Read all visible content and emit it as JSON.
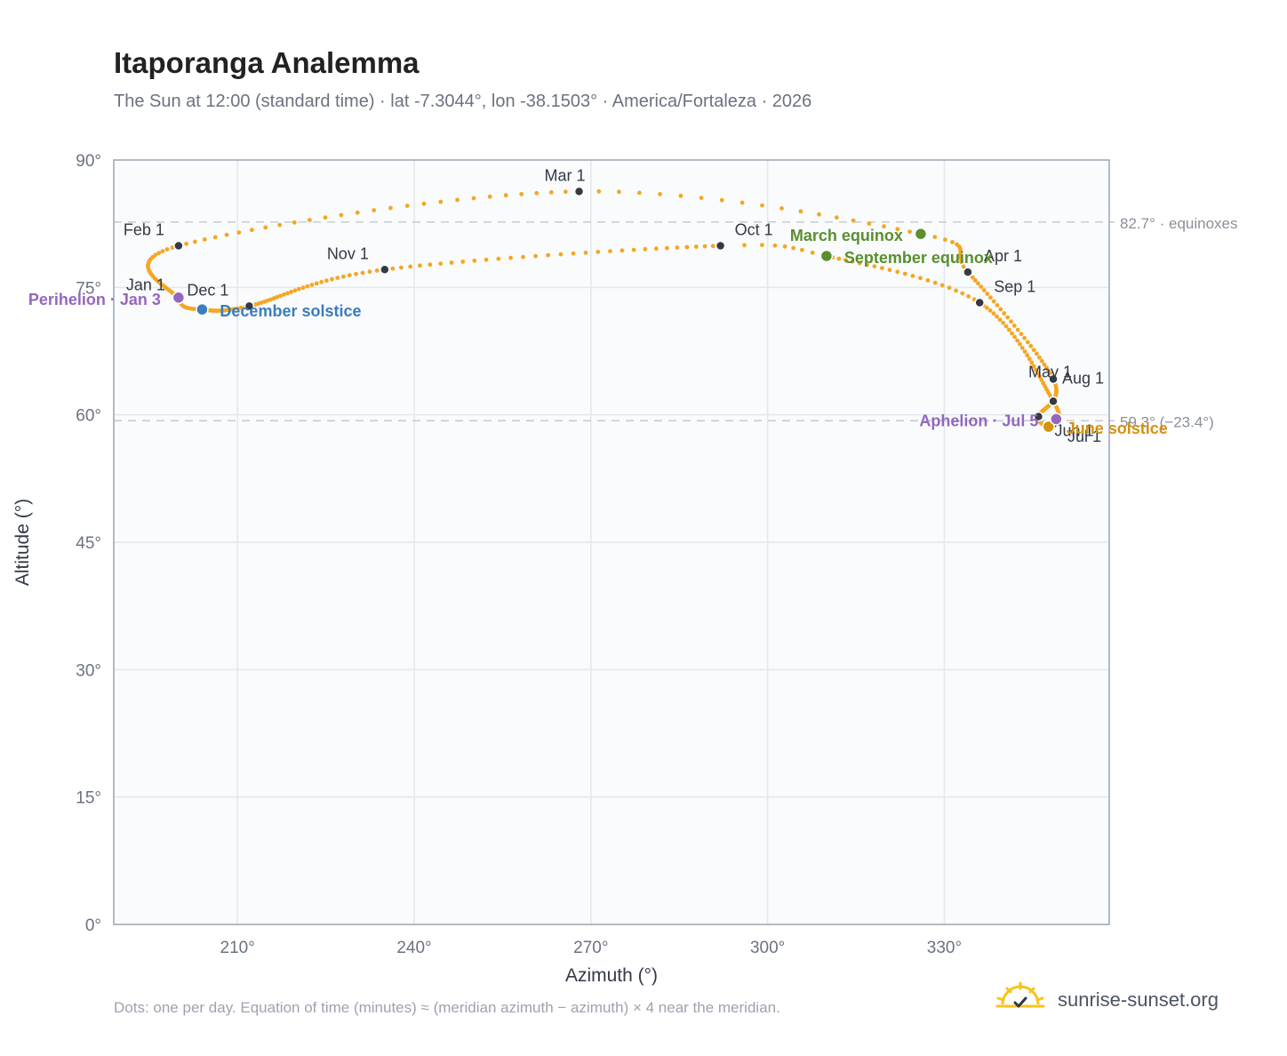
{
  "header": {
    "title": "Itaporanga Analemma",
    "subtitle": "The Sun at 12:00 (standard time) · lat -7.3044°, lon -38.1503° · America/Fortaleza · 2026"
  },
  "footer": {
    "note": "Dots: one per day. Equation of time (minutes) ≈ (meridian azimuth − azimuth) × 4 near the meridian.",
    "brand": "sunrise-sunset.org"
  },
  "chart_data": {
    "type": "scatter",
    "xlabel": "Azimuth (°)",
    "ylabel": "Altitude (°)",
    "xlim": [
      189,
      358
    ],
    "ylim": [
      0,
      90
    ],
    "x_ticks": [
      210,
      240,
      270,
      300,
      330
    ],
    "x_tick_labels": [
      "210°",
      "240°",
      "270°",
      "300°",
      "330°"
    ],
    "y_ticks": [
      0,
      15,
      30,
      45,
      60,
      75,
      90
    ],
    "y_tick_labels": [
      "0°",
      "15°",
      "30°",
      "45°",
      "60°",
      "75°",
      "90°"
    ],
    "grid": true,
    "colors": {
      "path": "#f5a623",
      "month": "#333a45",
      "equinox": "#5a8f2e",
      "solstice_dec": "#3b7dbd",
      "solstice_jun": "#d4920e",
      "apsis": "#9467bd",
      "reference": "#c5ccd3",
      "reference_text": "#8a9099",
      "plot_bg": "#f9fbfd",
      "frame": "#9aa5b1"
    },
    "reference_lines": [
      {
        "y": 82.7,
        "label": "82.7° · equinoxes"
      },
      {
        "y": 59.3,
        "label": "59.3° (−23.4°)"
      }
    ],
    "path_anchors": [
      {
        "day": 1,
        "x": 200.0,
        "y": 73.6
      },
      {
        "day": 32,
        "x": 200.0,
        "y": 79.9
      },
      {
        "day": 60,
        "x": 268.0,
        "y": 86.3
      },
      {
        "day": 79,
        "x": 326.0,
        "y": 81.3
      },
      {
        "day": 91,
        "x": 334.0,
        "y": 76.8
      },
      {
        "day": 121,
        "x": 348.5,
        "y": 64.2
      },
      {
        "day": 152,
        "x": 346.0,
        "y": 59.8
      },
      {
        "day": 172,
        "x": 347.7,
        "y": 58.6
      },
      {
        "day": 182,
        "x": 348.5,
        "y": 58.9
      },
      {
        "day": 213,
        "x": 348.5,
        "y": 61.6
      },
      {
        "day": 244,
        "x": 336.0,
        "y": 73.2
      },
      {
        "day": 266,
        "x": 310.0,
        "y": 78.7
      },
      {
        "day": 274,
        "x": 292.0,
        "y": 79.9
      },
      {
        "day": 305,
        "x": 235.0,
        "y": 77.1
      },
      {
        "day": 335,
        "x": 212.0,
        "y": 72.8
      },
      {
        "day": 355,
        "x": 204.0,
        "y": 72.4
      },
      {
        "day": 366,
        "x": 200.0,
        "y": 73.6
      }
    ],
    "month_markers": [
      {
        "label": "Jan 1",
        "x": 200.0,
        "y": 73.6
      },
      {
        "label": "Feb 1",
        "x": 200.0,
        "y": 79.9
      },
      {
        "label": "Mar 1",
        "x": 268.0,
        "y": 86.3
      },
      {
        "label": "Apr 1",
        "x": 334.0,
        "y": 76.8
      },
      {
        "label": "May 1",
        "x": 348.5,
        "y": 64.2
      },
      {
        "label": "Jun 1",
        "x": 346.0,
        "y": 59.8
      },
      {
        "label": "Jul 1",
        "x": 348.5,
        "y": 58.9
      },
      {
        "label": "Aug 1",
        "x": 348.5,
        "y": 61.6
      },
      {
        "label": "Sep 1",
        "x": 336.0,
        "y": 73.2
      },
      {
        "label": "Oct 1",
        "x": 292.0,
        "y": 79.9
      },
      {
        "label": "Nov 1",
        "x": 235.0,
        "y": 77.1
      },
      {
        "label": "Dec 1",
        "x": 212.0,
        "y": 72.8
      }
    ],
    "events": [
      {
        "label": "March equinox",
        "x": 326.0,
        "y": 81.3,
        "kind": "equinox"
      },
      {
        "label": "September equinox",
        "x": 310.0,
        "y": 78.7,
        "kind": "equinox"
      },
      {
        "label": "December solstice",
        "x": 204.0,
        "y": 72.4,
        "kind": "solstice_dec"
      },
      {
        "label": "June solstice",
        "x": 347.7,
        "y": 58.6,
        "kind": "solstice_jun"
      },
      {
        "label": "Perihelion · Jan 3",
        "x": 200.0,
        "y": 73.8,
        "kind": "apsis"
      },
      {
        "label": "Aphelion · Jul 5",
        "x": 349.0,
        "y": 59.5,
        "kind": "apsis"
      }
    ]
  }
}
